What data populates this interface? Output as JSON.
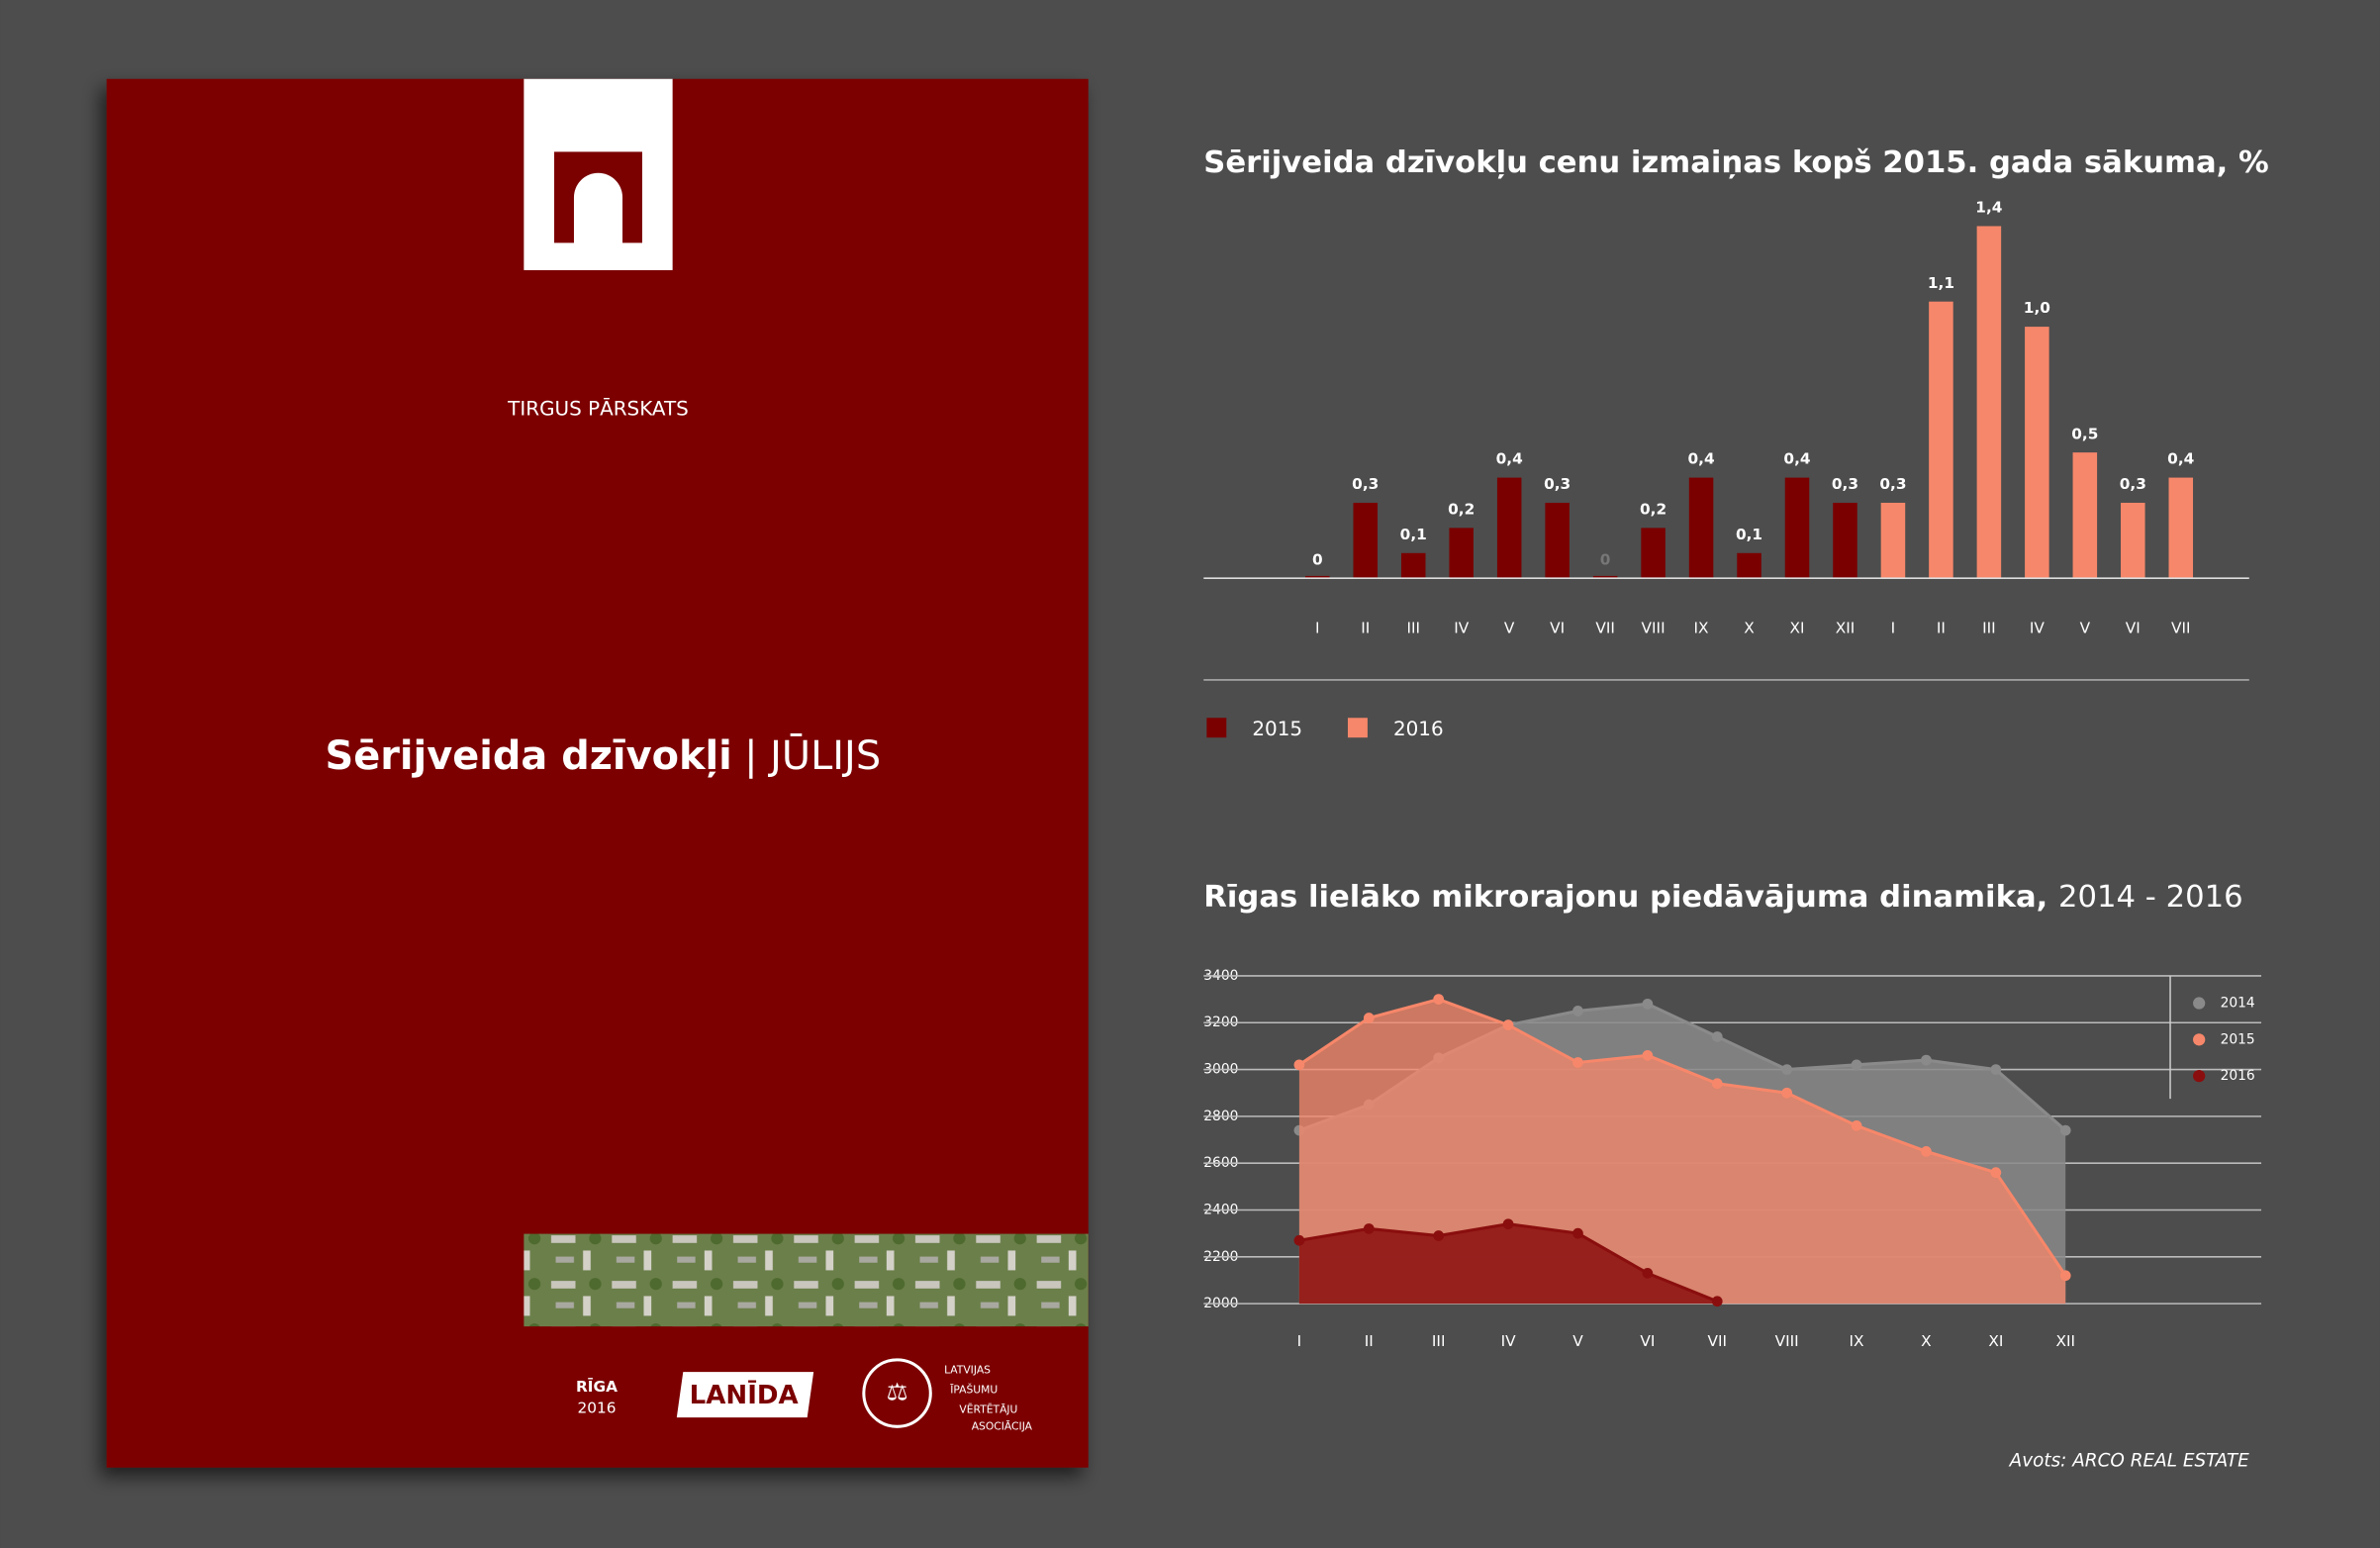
{
  "cover": {
    "kicker": "TIRGUS PĀRSKATS",
    "title": "Sērijveida dzīvokļi",
    "subtitle": "| JŪLIJS",
    "city": "RĪGA",
    "year": "2016",
    "logo1": "LANĪDA",
    "logo2": [
      "LATVIJAS",
      "ĪPAŠUMU",
      "VĒRTĒTĀJU",
      "ASOCIĀCIJA"
    ]
  },
  "chart_data": [
    {
      "type": "bar",
      "title": "Sērijveida dzīvokļu cenu izmaiņas kopš 2015. gada sākuma, %",
      "categories": [
        "I",
        "II",
        "III",
        "IV",
        "V",
        "VI",
        "VII",
        "VIII",
        "IX",
        "X",
        "XI",
        "XII",
        "I",
        "II",
        "III",
        "IV",
        "V",
        "VI",
        "VII"
      ],
      "series": [
        {
          "name": "2015",
          "color": "#7a0000",
          "values": [
            0,
            0.3,
            0.1,
            0.2,
            0.4,
            0.3,
            0,
            0.2,
            0.4,
            0.1,
            0.4,
            0.3,
            null,
            null,
            null,
            null,
            null,
            null,
            null
          ],
          "value_labels": [
            "0",
            "0,3",
            "0,1",
            "0,2",
            "0,4",
            "0,3",
            "0",
            "0,2",
            "0,4",
            "0,1",
            "0,4",
            "0,3",
            null,
            null,
            null,
            null,
            null,
            null,
            null
          ]
        },
        {
          "name": "2016",
          "color": "#f7876a",
          "values": [
            null,
            null,
            null,
            null,
            null,
            null,
            null,
            null,
            null,
            null,
            null,
            null,
            0.3,
            1.1,
            1.4,
            1.0,
            0.5,
            0.3,
            0.4
          ],
          "value_labels": [
            null,
            null,
            null,
            null,
            null,
            null,
            null,
            null,
            null,
            null,
            null,
            null,
            "0,3",
            "1,1",
            "1,4",
            "1,0",
            "0,5",
            "0,3",
            "0,4"
          ]
        }
      ],
      "legend": "bottom-left"
    },
    {
      "type": "area",
      "title": "Rīgas lielāko mikrorajonu piedāvājuma dinamika,",
      "subtitle": "2014 - 2016",
      "categories": [
        "I",
        "II",
        "III",
        "IV",
        "V",
        "VI",
        "VII",
        "VIII",
        "IX",
        "X",
        "XI",
        "XII"
      ],
      "ylim": [
        2000,
        3400
      ],
      "yticks": [
        2000,
        2200,
        2400,
        2600,
        2800,
        3000,
        3200,
        3400
      ],
      "grid": true,
      "legend": "top-right",
      "series": [
        {
          "name": "2014",
          "color": "#8a8a8a",
          "values": [
            2740,
            2850,
            3050,
            3190,
            3250,
            3280,
            3140,
            3000,
            3020,
            3040,
            3000,
            2740
          ]
        },
        {
          "name": "2015",
          "color": "#f7876a",
          "values": [
            3020,
            3220,
            3300,
            3190,
            3030,
            3060,
            2940,
            2900,
            2760,
            2650,
            2560,
            2120
          ]
        },
        {
          "name": "2016",
          "color": "#8a0e0e",
          "values": [
            2270,
            2320,
            2290,
            2340,
            2300,
            2130,
            2010,
            null,
            null,
            null,
            null,
            null
          ]
        }
      ]
    }
  ],
  "source": "Avots: ARCO REAL ESTATE"
}
